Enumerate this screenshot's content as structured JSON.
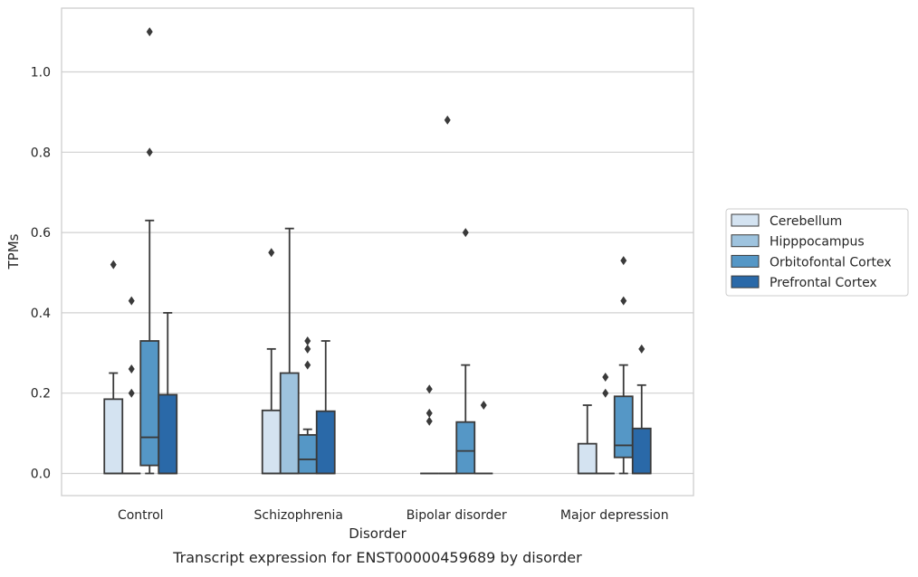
{
  "chart_data": {
    "type": "box",
    "xlabel": "Disorder",
    "ylabel": "TPMs",
    "caption": "Transcript expression for ENST00000459689 by disorder",
    "ylim": [
      -0.05,
      1.15
    ],
    "yticks": [
      0.0,
      0.2,
      0.4,
      0.6,
      0.8,
      1.0
    ],
    "ytick_labels": [
      "0.0",
      "0.2",
      "0.4",
      "0.6",
      "0.8",
      "1.0"
    ],
    "grid": "horizontal",
    "legend_position": "right",
    "categories": [
      "Control",
      "Schizophrenia",
      "Bipolar disorder",
      "Major depression"
    ],
    "series": [
      {
        "name": "Cerebellum",
        "color": "#d4e3f1",
        "boxes": [
          {
            "q1": 0.0,
            "median": 0.0,
            "q3": 0.185,
            "whislo": 0.0,
            "whishi": 0.25,
            "fliers": [
              0.52
            ]
          },
          {
            "q1": 0.0,
            "median": 0.0,
            "q3": 0.157,
            "whislo": 0.0,
            "whishi": 0.31,
            "fliers": [
              0.55
            ]
          },
          {
            "q1": 0.0,
            "median": 0.0,
            "q3": 0.0,
            "whislo": 0.0,
            "whishi": 0.0,
            "fliers": [
              0.13,
              0.15,
              0.21
            ]
          },
          {
            "q1": 0.0,
            "median": 0.0,
            "q3": 0.074,
            "whislo": 0.0,
            "whishi": 0.17,
            "fliers": []
          }
        ]
      },
      {
        "name": "Hipppocampus",
        "color": "#9ec3de",
        "boxes": [
          {
            "q1": 0.0,
            "median": 0.0,
            "q3": 0.0,
            "whislo": 0.0,
            "whishi": 0.0,
            "fliers": [
              0.2,
              0.26,
              0.43
            ]
          },
          {
            "q1": 0.0,
            "median": 0.0,
            "q3": 0.25,
            "whislo": 0.0,
            "whishi": 0.61,
            "fliers": []
          },
          {
            "q1": 0.0,
            "median": 0.0,
            "q3": 0.0,
            "whislo": 0.0,
            "whishi": 0.0,
            "fliers": [
              0.88
            ]
          },
          {
            "q1": 0.0,
            "median": 0.0,
            "q3": 0.0,
            "whislo": 0.0,
            "whishi": 0.0,
            "fliers": [
              0.2,
              0.24
            ]
          }
        ]
      },
      {
        "name": "Orbitofontal Cortex",
        "color": "#5597c6",
        "boxes": [
          {
            "q1": 0.02,
            "median": 0.09,
            "q3": 0.33,
            "whislo": 0.0,
            "whishi": 0.63,
            "fliers": [
              0.8,
              1.1
            ]
          },
          {
            "q1": 0.0,
            "median": 0.035,
            "q3": 0.096,
            "whislo": 0.0,
            "whishi": 0.11,
            "fliers": [
              0.27,
              0.31,
              0.33
            ]
          },
          {
            "q1": 0.0,
            "median": 0.056,
            "q3": 0.128,
            "whislo": 0.0,
            "whishi": 0.27,
            "fliers": [
              0.6
            ]
          },
          {
            "q1": 0.04,
            "median": 0.07,
            "q3": 0.192,
            "whislo": 0.0,
            "whishi": 0.27,
            "fliers": [
              0.43,
              0.53
            ]
          }
        ]
      },
      {
        "name": "Prefrontal Cortex",
        "color": "#2a69a8",
        "boxes": [
          {
            "q1": 0.0,
            "median": 0.0,
            "q3": 0.196,
            "whislo": 0.0,
            "whishi": 0.4,
            "fliers": []
          },
          {
            "q1": 0.0,
            "median": 0.0,
            "q3": 0.155,
            "whislo": 0.0,
            "whishi": 0.33,
            "fliers": []
          },
          {
            "q1": 0.0,
            "median": 0.0,
            "q3": 0.0,
            "whislo": 0.0,
            "whishi": 0.0,
            "fliers": [
              0.17
            ]
          },
          {
            "q1": 0.0,
            "median": 0.0,
            "q3": 0.112,
            "whislo": 0.0,
            "whishi": 0.22,
            "fliers": [
              0.31
            ]
          }
        ]
      }
    ]
  }
}
